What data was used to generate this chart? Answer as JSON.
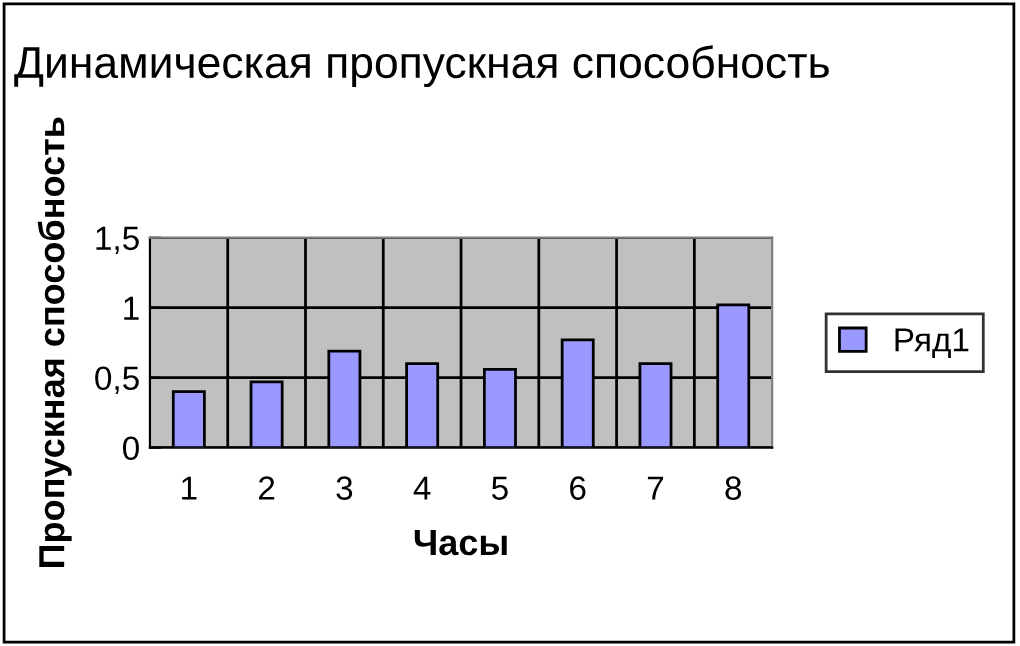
{
  "chart_data": {
    "type": "bar",
    "title": "Динамическая пропускная способность",
    "xlabel": "Часы",
    "ylabel": "Пропускная способность",
    "categories": [
      "1",
      "2",
      "3",
      "4",
      "5",
      "6",
      "7",
      "8"
    ],
    "series": [
      {
        "name": "Ряд1",
        "color": "#9999ff",
        "values": [
          0.4,
          0.47,
          0.69,
          0.6,
          0.56,
          0.77,
          0.6,
          1.02
        ]
      }
    ],
    "ylim": [
      0,
      1.5
    ],
    "yticks": [
      0,
      {
        "value": 0.5,
        "label": "0,5"
      },
      1,
      {
        "value": 1.5,
        "label": "1,5"
      }
    ],
    "grid": true,
    "legend": "right"
  }
}
